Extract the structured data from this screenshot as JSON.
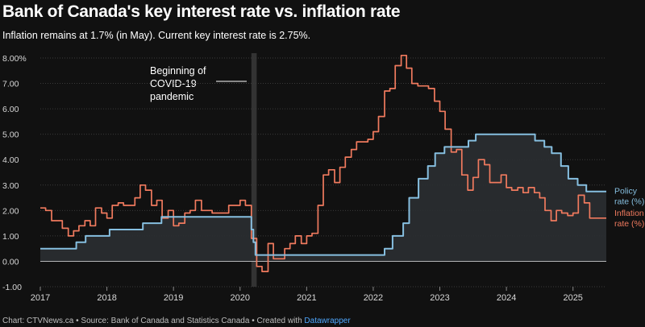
{
  "header": {
    "title": "Bank of Canada's key interest rate vs. inflation rate",
    "subtitle": "Inflation remains at 1.7% (in May). Current key interest rate is 2.75%."
  },
  "footer": {
    "credit": "Chart: CTVNews.ca • Source: Bank of Canada and Statistics Canada • Created with ",
    "tool": "Datawrapper"
  },
  "colors": {
    "background": "#111111",
    "policy": "#86bfe0",
    "inflation": "#f07a5e",
    "grid": "#3a3a3a",
    "zero_line": "#ffffff",
    "covid_band": "#333333"
  },
  "chart_data": {
    "type": "line",
    "x_range": [
      2017.0,
      2025.5
    ],
    "ylim": [
      -1,
      8
    ],
    "y_ticks": [
      -1,
      0,
      1,
      2,
      3,
      4,
      5,
      6,
      7,
      8
    ],
    "y_tick_labels": [
      "-1.00",
      "0.00",
      "1.00",
      "2.00",
      "3.00",
      "4.00",
      "5.00",
      "6.00",
      "7.00",
      "8.00%"
    ],
    "x_ticks": [
      2017,
      2018,
      2019,
      2020,
      2021,
      2022,
      2023,
      2024,
      2025
    ],
    "x_tick_labels": [
      "2017",
      "2018",
      "2019",
      "2020",
      "2021",
      "2022",
      "2023",
      "2024",
      "2025"
    ],
    "grid": true,
    "annotation": {
      "text": [
        "Beginning of",
        "COVID-19",
        "pandemic"
      ],
      "x_start": 2020.17,
      "x_end": 2020.25
    },
    "series": [
      {
        "name": "Policy rate (%)",
        "label_lines": [
          "Policy",
          "rate (%)"
        ],
        "shape": "step",
        "area": true,
        "points": [
          [
            2017.0,
            0.5
          ],
          [
            2017.54,
            0.75
          ],
          [
            2017.68,
            1.0
          ],
          [
            2018.04,
            1.25
          ],
          [
            2018.54,
            1.5
          ],
          [
            2018.82,
            1.75
          ],
          [
            2020.17,
            1.25
          ],
          [
            2020.2,
            0.75
          ],
          [
            2020.23,
            0.25
          ],
          [
            2022.17,
            0.5
          ],
          [
            2022.29,
            1.0
          ],
          [
            2022.45,
            1.5
          ],
          [
            2022.54,
            2.5
          ],
          [
            2022.68,
            3.25
          ],
          [
            2022.82,
            3.75
          ],
          [
            2022.93,
            4.25
          ],
          [
            2023.07,
            4.5
          ],
          [
            2023.43,
            4.75
          ],
          [
            2023.54,
            5.0
          ],
          [
            2024.43,
            4.75
          ],
          [
            2024.57,
            4.5
          ],
          [
            2024.68,
            4.25
          ],
          [
            2024.82,
            3.75
          ],
          [
            2024.93,
            3.25
          ],
          [
            2025.07,
            3.0
          ],
          [
            2025.2,
            2.75
          ],
          [
            2025.5,
            2.75
          ]
        ]
      },
      {
        "name": "Inflation rate (%)",
        "label_lines": [
          "Inflation",
          "rate (%)"
        ],
        "shape": "step",
        "area": false,
        "points": [
          [
            2017.0,
            2.1
          ],
          [
            2017.08,
            2.0
          ],
          [
            2017.17,
            1.6
          ],
          [
            2017.25,
            1.6
          ],
          [
            2017.33,
            1.3
          ],
          [
            2017.42,
            1.0
          ],
          [
            2017.5,
            1.2
          ],
          [
            2017.58,
            1.4
          ],
          [
            2017.67,
            1.6
          ],
          [
            2017.75,
            1.4
          ],
          [
            2017.83,
            2.1
          ],
          [
            2017.92,
            1.9
          ],
          [
            2018.0,
            1.7
          ],
          [
            2018.08,
            2.2
          ],
          [
            2018.17,
            2.3
          ],
          [
            2018.25,
            2.2
          ],
          [
            2018.33,
            2.2
          ],
          [
            2018.42,
            2.5
          ],
          [
            2018.5,
            3.0
          ],
          [
            2018.58,
            2.8
          ],
          [
            2018.67,
            2.2
          ],
          [
            2018.75,
            2.4
          ],
          [
            2018.83,
            1.7
          ],
          [
            2018.92,
            2.0
          ],
          [
            2019.0,
            1.4
          ],
          [
            2019.08,
            1.5
          ],
          [
            2019.17,
            1.9
          ],
          [
            2019.25,
            2.0
          ],
          [
            2019.33,
            2.4
          ],
          [
            2019.42,
            2.0
          ],
          [
            2019.5,
            2.0
          ],
          [
            2019.58,
            1.9
          ],
          [
            2019.67,
            1.9
          ],
          [
            2019.75,
            1.9
          ],
          [
            2019.83,
            2.2
          ],
          [
            2019.92,
            2.2
          ],
          [
            2020.0,
            2.4
          ],
          [
            2020.08,
            2.2
          ],
          [
            2020.17,
            0.9
          ],
          [
            2020.25,
            -0.2
          ],
          [
            2020.33,
            -0.4
          ],
          [
            2020.42,
            0.7
          ],
          [
            2020.5,
            0.1
          ],
          [
            2020.58,
            0.1
          ],
          [
            2020.67,
            0.5
          ],
          [
            2020.75,
            0.7
          ],
          [
            2020.83,
            1.0
          ],
          [
            2020.92,
            0.7
          ],
          [
            2021.0,
            1.0
          ],
          [
            2021.08,
            1.1
          ],
          [
            2021.17,
            2.2
          ],
          [
            2021.25,
            3.4
          ],
          [
            2021.33,
            3.6
          ],
          [
            2021.42,
            3.1
          ],
          [
            2021.5,
            3.7
          ],
          [
            2021.58,
            4.1
          ],
          [
            2021.67,
            4.4
          ],
          [
            2021.75,
            4.7
          ],
          [
            2021.83,
            4.7
          ],
          [
            2021.92,
            4.8
          ],
          [
            2022.0,
            5.1
          ],
          [
            2022.08,
            5.7
          ],
          [
            2022.17,
            6.7
          ],
          [
            2022.25,
            6.8
          ],
          [
            2022.33,
            7.7
          ],
          [
            2022.42,
            8.1
          ],
          [
            2022.5,
            7.6
          ],
          [
            2022.58,
            7.0
          ],
          [
            2022.67,
            6.9
          ],
          [
            2022.75,
            6.9
          ],
          [
            2022.83,
            6.8
          ],
          [
            2022.92,
            6.3
          ],
          [
            2023.0,
            5.9
          ],
          [
            2023.08,
            5.2
          ],
          [
            2023.17,
            4.3
          ],
          [
            2023.25,
            4.4
          ],
          [
            2023.33,
            3.4
          ],
          [
            2023.42,
            2.8
          ],
          [
            2023.5,
            3.3
          ],
          [
            2023.58,
            4.0
          ],
          [
            2023.67,
            3.8
          ],
          [
            2023.75,
            3.1
          ],
          [
            2023.83,
            3.1
          ],
          [
            2023.92,
            3.4
          ],
          [
            2024.0,
            2.9
          ],
          [
            2024.08,
            2.8
          ],
          [
            2024.17,
            2.9
          ],
          [
            2024.25,
            2.7
          ],
          [
            2024.33,
            2.9
          ],
          [
            2024.42,
            2.7
          ],
          [
            2024.5,
            2.5
          ],
          [
            2024.58,
            2.0
          ],
          [
            2024.67,
            1.6
          ],
          [
            2024.75,
            2.0
          ],
          [
            2024.83,
            1.9
          ],
          [
            2024.92,
            1.8
          ],
          [
            2025.0,
            1.9
          ],
          [
            2025.08,
            2.6
          ],
          [
            2025.17,
            2.3
          ],
          [
            2025.25,
            1.7
          ],
          [
            2025.33,
            1.7
          ],
          [
            2025.42,
            1.7
          ]
        ]
      }
    ]
  }
}
